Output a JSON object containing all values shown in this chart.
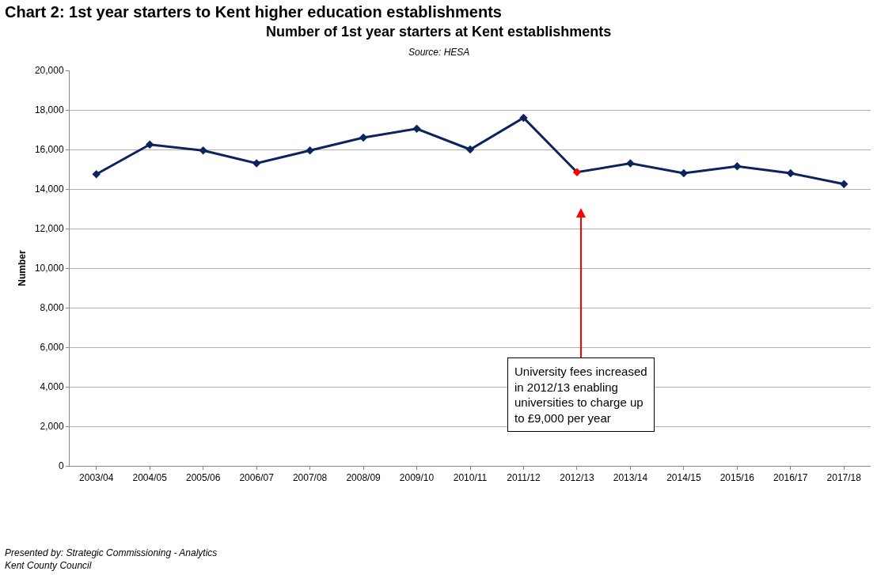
{
  "chart_data": {
    "type": "line",
    "title": "Number of 1st year starters at Kent establishments",
    "subtitle": "Source: HESA",
    "ylabel": "Number",
    "categories": [
      "2003/04",
      "2004/05",
      "2005/06",
      "2006/07",
      "2007/08",
      "2008/09",
      "2009/10",
      "2010/11",
      "2011/12",
      "2012/13",
      "2013/14",
      "2014/15",
      "2015/16",
      "2016/17",
      "2017/18"
    ],
    "series": [
      {
        "color": "#0d2360",
        "colors": [
          "#0d2360",
          "#0d2360",
          "#0d2360",
          "#0d2360",
          "#0d2360",
          "#0d2360",
          "#0d2360",
          "#0d2360",
          "#0d2360",
          "#ff0000",
          "#0d2360",
          "#0d2360",
          "#0d2360",
          "#0d2360",
          "#0d2360"
        ],
        "values": [
          14750,
          16250,
          15950,
          15300,
          15950,
          16600,
          17050,
          16000,
          17600,
          14850,
          15300,
          14800,
          15150,
          14800,
          14250
        ]
      }
    ],
    "ylim": [
      0,
      20000
    ],
    "yticks": [
      {
        "value": 0,
        "label": "0"
      },
      {
        "value": 2000,
        "label": "2,000"
      },
      {
        "value": 4000,
        "label": "4,000"
      },
      {
        "value": 6000,
        "label": "6,000"
      },
      {
        "value": 8000,
        "label": "8,000"
      },
      {
        "value": 10000,
        "label": "10,000"
      },
      {
        "value": 12000,
        "label": "12,000"
      },
      {
        "value": 14000,
        "label": "14,000"
      },
      {
        "value": 16000,
        "label": "16,000"
      },
      {
        "value": 18000,
        "label": "18,000"
      },
      {
        "value": 20000,
        "label": "20,000"
      }
    ],
    "grid": "y",
    "marker": "diamond",
    "line_style": "solid",
    "annotations": [
      "Chart 2: 1st year starters to Kent higher education establishments",
      "University fees increased\nin 2012/13 enabling\nuniversities to charge up\nto £9,000 per year",
      "Presented by: Strategic Commissioning - Analytics\nKent County Council"
    ]
  }
}
